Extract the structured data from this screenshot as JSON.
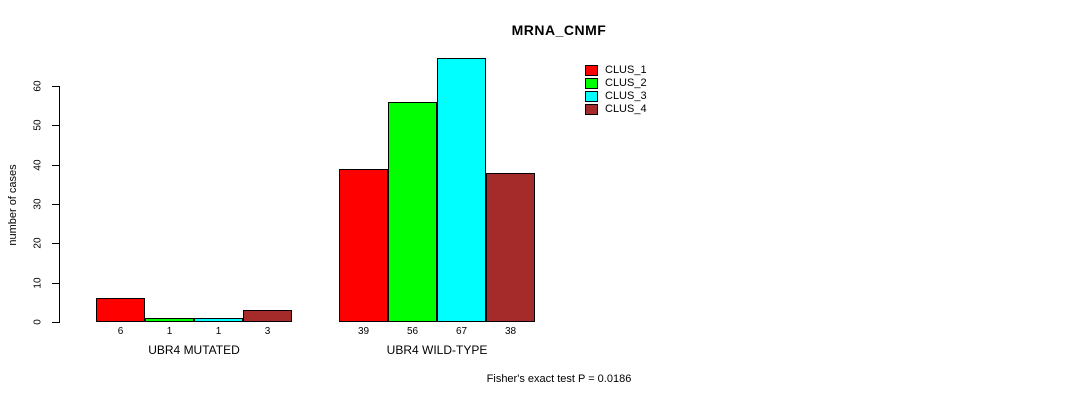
{
  "chart_data": {
    "type": "bar",
    "title": "MRNA_CNMF",
    "xlabel": "",
    "ylabel": "number of cases",
    "categories": [
      "UBR4 MUTATED",
      "UBR4 WILD-TYPE"
    ],
    "series": [
      {
        "name": "CLUS_1",
        "color": "#ff0000",
        "values": [
          6,
          39
        ]
      },
      {
        "name": "CLUS_2",
        "color": "#00ff00",
        "values": [
          1,
          56
        ]
      },
      {
        "name": "CLUS_3",
        "color": "#00ffff",
        "values": [
          1,
          67
        ]
      },
      {
        "name": "CLUS_4",
        "color": "#a52a2a",
        "values": [
          3,
          38
        ]
      }
    ],
    "ylim": [
      0,
      60
    ],
    "yticks": [
      0,
      10,
      20,
      30,
      40,
      50,
      60
    ],
    "bar_value_labels": [
      [
        6,
        1,
        1,
        3
      ],
      [
        39,
        56,
        67,
        38
      ]
    ],
    "legend_position": "top-right",
    "grid": false,
    "annotation": "Fisher's exact test P = 0.0186"
  }
}
